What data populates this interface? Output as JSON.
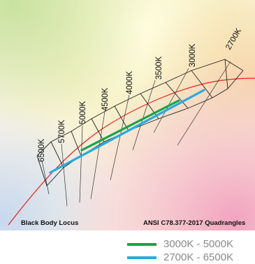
{
  "cct_labels": [
    "6500K",
    "5700K",
    "5000K",
    "4500K",
    "4000K",
    "3500K",
    "3000K",
    "2700K"
  ],
  "captions": {
    "locus": "Black Body Locus",
    "quadrangles": "ANSI C78.377-2017 Quadrangles"
  },
  "legend": [
    {
      "label": "3000K - 5000K",
      "color": "#1aa34a"
    },
    {
      "label": "2700K - 6500K",
      "color": "#29a9e0"
    }
  ],
  "colors": {
    "locus": "#e8231f",
    "quadrangle_outline": "#222222"
  }
}
